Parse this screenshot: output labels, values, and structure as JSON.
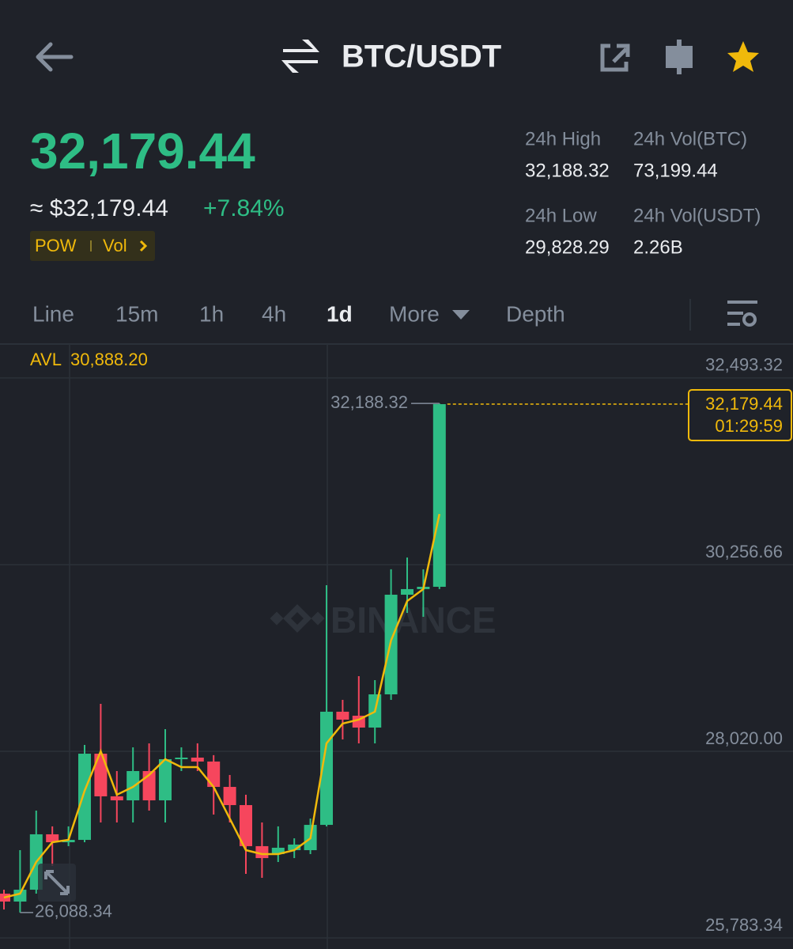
{
  "header": {
    "title": "BTC/USDT"
  },
  "ticker": {
    "price": "32,179.44",
    "price_usd": "≈ $32,179.44",
    "change": "+7.84%",
    "tags": [
      "POW",
      "Vol"
    ],
    "stats": [
      {
        "label": "24h High",
        "value": "32,188.32"
      },
      {
        "label": "24h Vol(BTC)",
        "value": "73,199.44"
      },
      {
        "label": "24h Low",
        "value": "29,828.29"
      },
      {
        "label": "24h Vol(USDT)",
        "value": "2.26B"
      }
    ]
  },
  "tabs": {
    "items": [
      "Line",
      "15m",
      "1h",
      "4h",
      "1d",
      "More",
      "Depth"
    ],
    "active": "1d"
  },
  "chart_data": {
    "type": "candlestick",
    "watermark": "BINANCE",
    "avl_label": "AVL",
    "avl_value": "30,888.20",
    "ylim": [
      25783.34,
      32900
    ],
    "yticks": [
      {
        "value": 25783.34,
        "label": "25,783.34"
      },
      {
        "value": 28020.0,
        "label": "28,020.00"
      },
      {
        "value": 30256.66,
        "label": "30,256.66"
      },
      {
        "value": 32493.32,
        "label": "32,493.32"
      }
    ],
    "grid": true,
    "up_color": "#2ebd85",
    "down_color": "#f6465d",
    "candles": {
      "open": [
        26314,
        26219,
        26361,
        27025,
        26930,
        26958,
        27991,
        27480,
        27432,
        27783,
        27432,
        27925,
        27944,
        27897,
        27593,
        27375,
        26883,
        26788,
        26835,
        26835,
        27138,
        28494,
        28446,
        28304,
        28702,
        29896,
        29963,
        29991
      ],
      "close": [
        26219,
        26361,
        27025,
        26930,
        26958,
        27991,
        27480,
        27432,
        27783,
        27432,
        27925,
        27944,
        27897,
        27593,
        27375,
        26883,
        26740,
        26864,
        26902,
        27138,
        28494,
        28399,
        28304,
        28702,
        29896,
        29963,
        29991,
        32179.44
      ],
      "high": [
        26361,
        26835,
        27309,
        27120,
        27120,
        28096,
        28588,
        27783,
        28067,
        28115,
        28285,
        28067,
        28115,
        27973,
        27736,
        27499,
        27167,
        27120,
        26977,
        27214,
        30010,
        28636,
        28920,
        28873,
        30200,
        30342,
        30200,
        32188.32
      ],
      "low": [
        26124,
        26088.34,
        26314,
        26646,
        26883,
        26930,
        27167,
        27167,
        27167,
        27309,
        27167,
        27783,
        27783,
        27262,
        27167,
        26551,
        26504,
        26693,
        26740,
        26788,
        27120,
        28162,
        28115,
        28115,
        28636,
        29678,
        29631,
        29963
      ]
    },
    "ma": {
      "color": "#f0b90b",
      "values": [
        26267,
        26314,
        26693,
        26930,
        26958,
        27546,
        28020,
        27499,
        27593,
        27736,
        27925,
        27830,
        27830,
        27593,
        27214,
        26835,
        26788,
        26788,
        26835,
        26977,
        28115,
        28352,
        28399,
        28494,
        29347,
        29820,
        29963,
        30863
      ]
    },
    "last_price": {
      "value": 32179.44,
      "label": "32,179.44"
    },
    "countdown": "01:29:59",
    "high_marker": {
      "value": 32188.32,
      "label": "32,188.32"
    },
    "low_marker": {
      "value": 26088.34,
      "label": "26,088.34"
    }
  }
}
